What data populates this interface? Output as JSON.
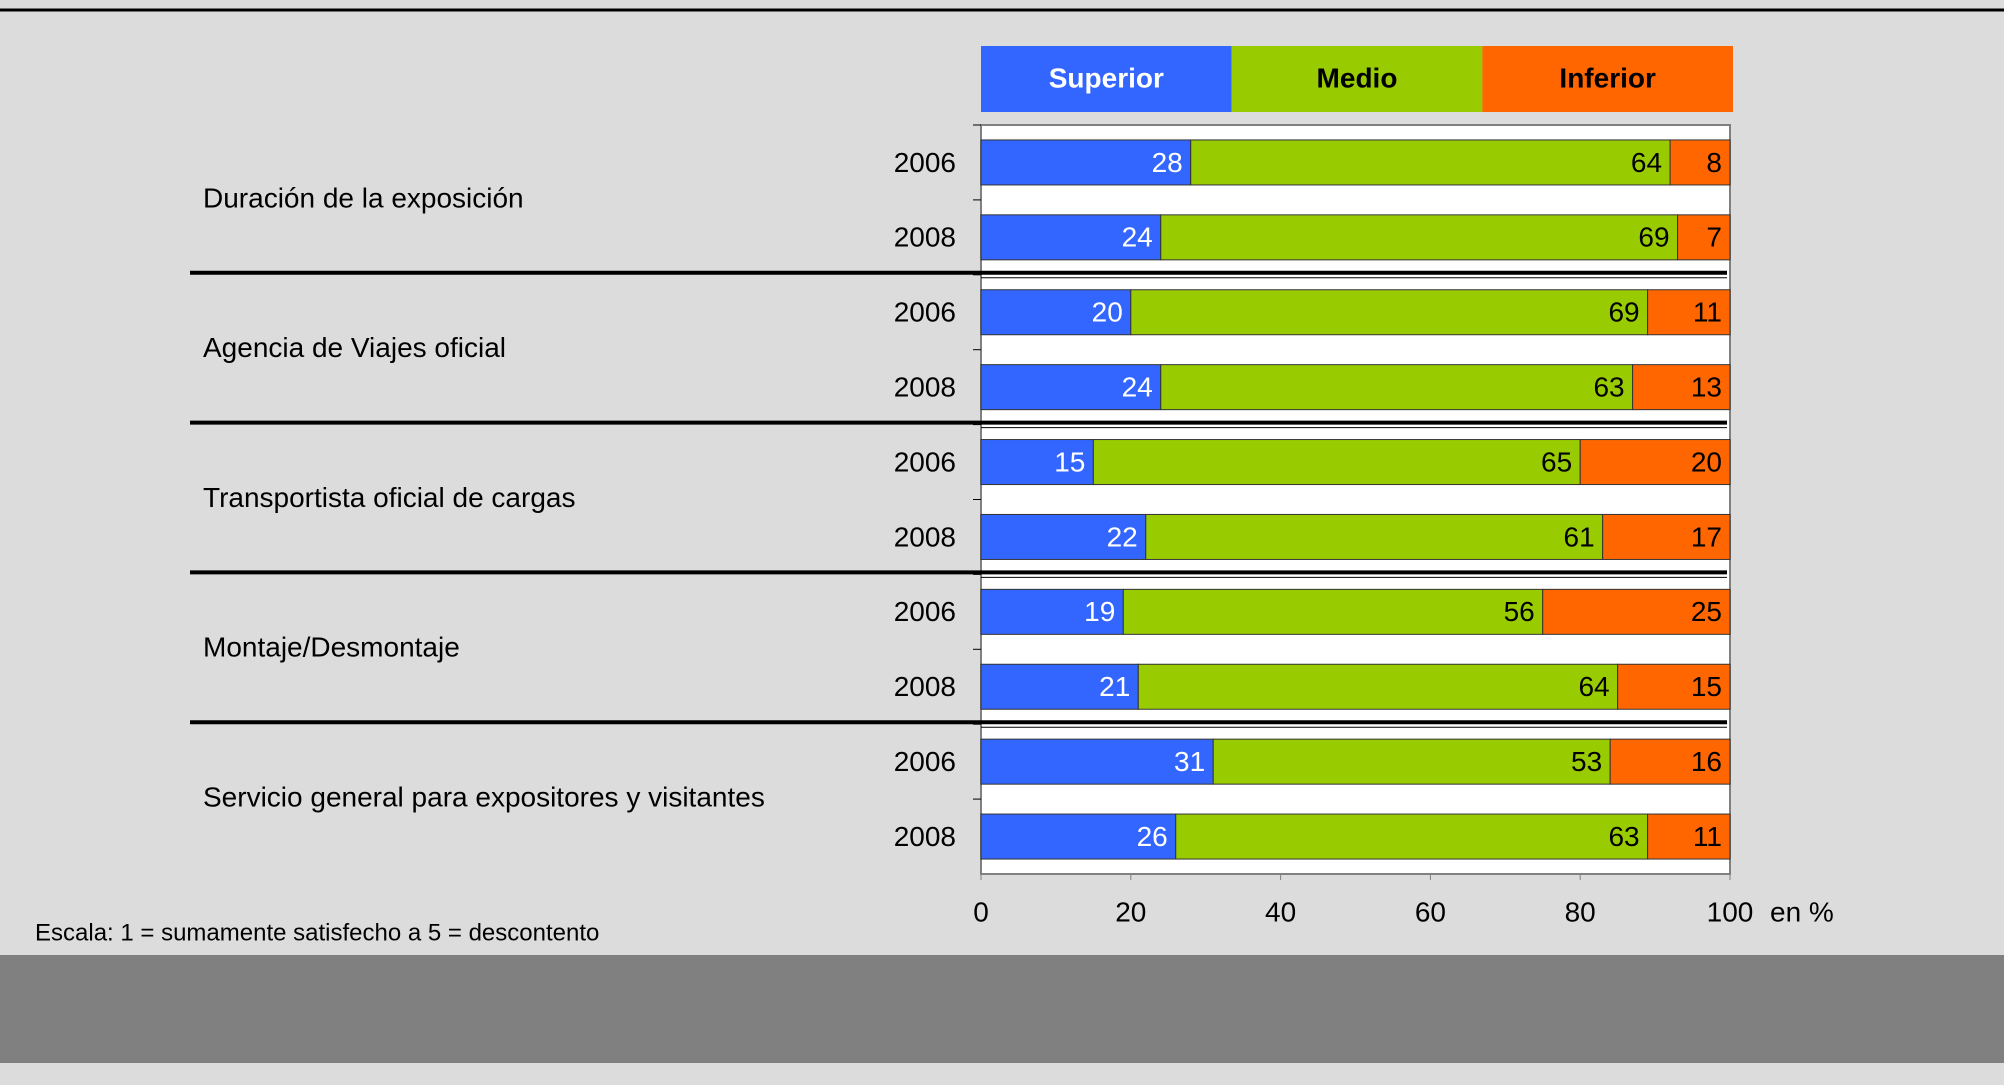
{
  "chart_data": {
    "type": "stacked_barh",
    "groups": [
      "Duración de la exposición",
      "Agencia de Viajes oficial",
      "Transportista oficial de cargas",
      "Montaje/Desmontaje",
      "Servicio general para expositores y visitantes"
    ],
    "categories": [
      "2006",
      "2008",
      "2006",
      "2008",
      "2006",
      "2008",
      "2006",
      "2008",
      "2006",
      "2008"
    ],
    "series": [
      {
        "name": "Superior",
        "color": "#3366ff",
        "values": [
          28,
          24,
          20,
          24,
          15,
          22,
          19,
          21,
          31,
          26
        ]
      },
      {
        "name": "Medio",
        "color": "#99cc00",
        "values": [
          64,
          69,
          69,
          63,
          65,
          61,
          56,
          64,
          53,
          63
        ]
      },
      {
        "name": "Inferior",
        "color": "#ff6600",
        "values": [
          8,
          7,
          11,
          13,
          20,
          17,
          25,
          15,
          16,
          11
        ]
      }
    ],
    "xlim": [
      0,
      100
    ],
    "xticks": [
      0,
      20,
      40,
      60,
      80,
      100
    ],
    "x_unit": "en %",
    "footnote": "Escala: 1 = sumamente satisfecho a 5 = descontento"
  }
}
